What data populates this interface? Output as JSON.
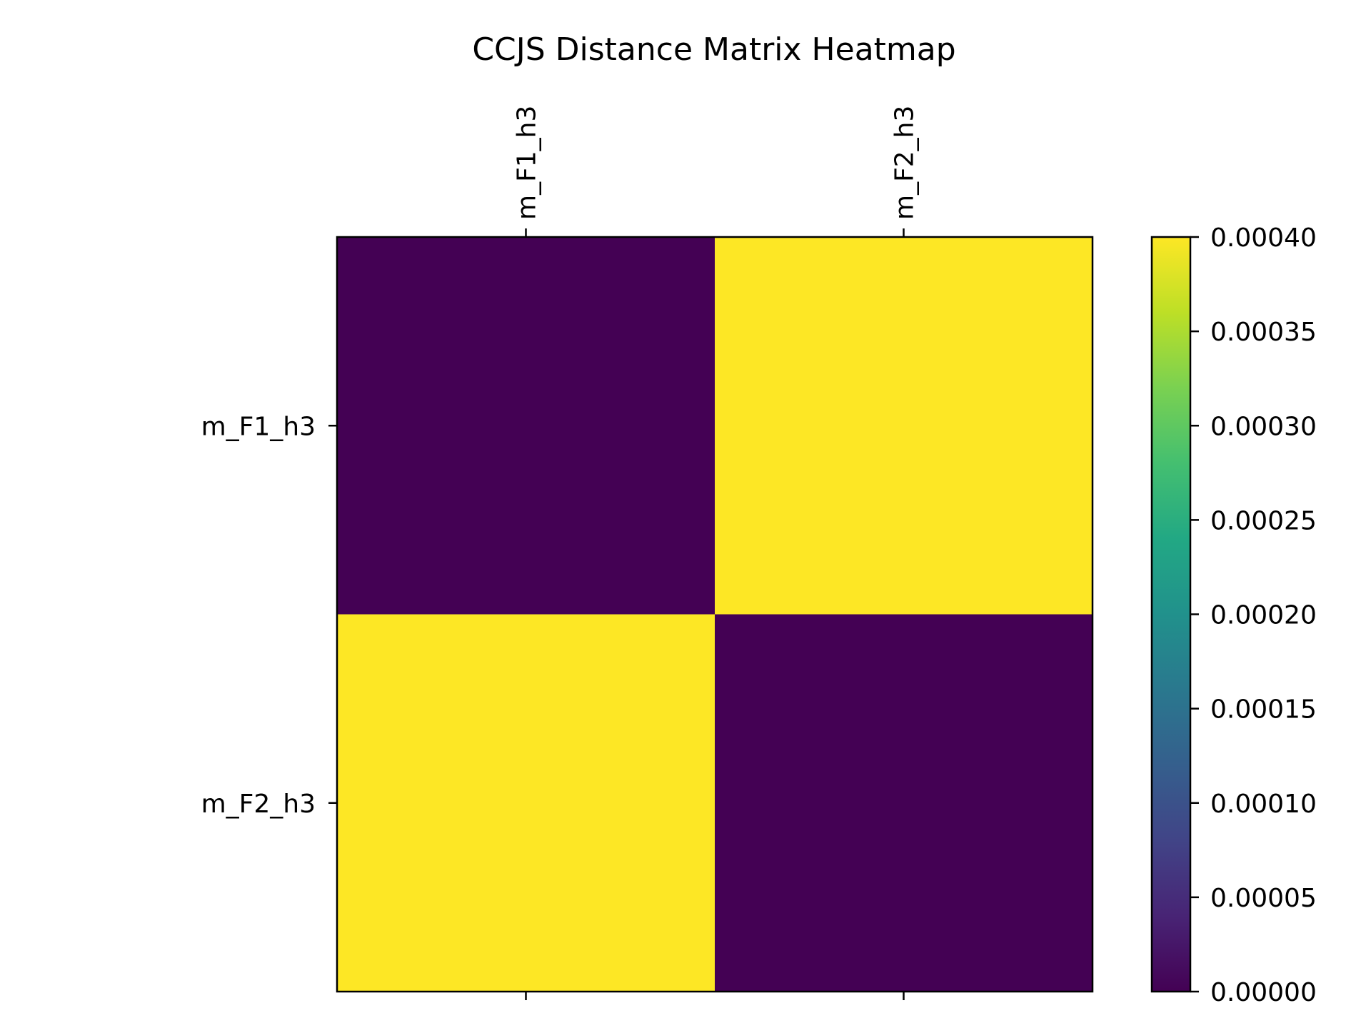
{
  "chart_data": {
    "type": "heatmap",
    "title": "CCJS Distance Matrix Heatmap",
    "row_labels": [
      "m_F1_h3",
      "m_F2_h3"
    ],
    "col_labels": [
      "m_F1_h3",
      "m_F2_h3"
    ],
    "values": [
      [
        0.0,
        0.0004
      ],
      [
        0.0004,
        0.0
      ]
    ],
    "colormap": "viridis",
    "colorbar": {
      "range": [
        0,
        0.0004
      ],
      "ticks": [
        0,
        5e-05,
        0.0001,
        0.00015,
        0.0002,
        0.00025,
        0.0003,
        0.00035,
        0.0004
      ],
      "tick_labels": [
        "0.00000",
        "0.00005",
        "0.00010",
        "0.00015",
        "0.00020",
        "0.00025",
        "0.00030",
        "0.00035",
        "0.00040"
      ]
    },
    "x_tick_position": "top",
    "grid": false
  }
}
